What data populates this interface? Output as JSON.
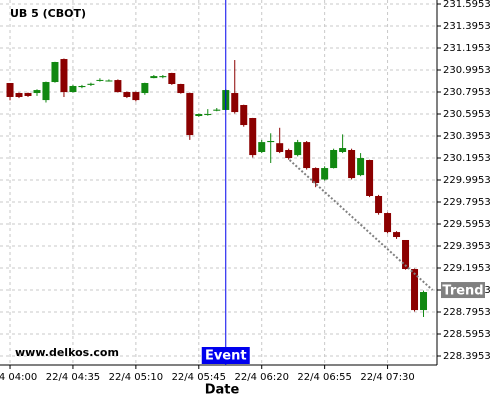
{
  "chart_data": {
    "type": "candlestick",
    "title": "UB 5 (CBOT)",
    "x_label": "Date",
    "watermark": "www.delkos.com",
    "categories": [
      "22/4 04:00",
      null,
      null,
      null,
      null,
      null,
      null,
      "22/4 04:35",
      null,
      null,
      null,
      null,
      null,
      null,
      "22/4 05:10",
      null,
      null,
      null,
      null,
      null,
      null,
      "22/4 05:45",
      null,
      null,
      null,
      null,
      null,
      null,
      "22/4 06:20",
      null,
      null,
      null,
      null,
      null,
      null,
      "22/4 06:55",
      null,
      null,
      null,
      null,
      null,
      null,
      "22/4 07:30",
      null,
      null,
      null,
      null
    ],
    "open": [
      230.877,
      230.786,
      230.786,
      230.786,
      230.722,
      230.886,
      231.095,
      230.795,
      230.84,
      230.86,
      230.9,
      230.895,
      230.904,
      230.795,
      230.795,
      230.786,
      230.922,
      230.93,
      230.968,
      230.868,
      230.786,
      230.577,
      230.59,
      230.625,
      230.632,
      230.786,
      230.677,
      230.559,
      230.25,
      230.34,
      230.33,
      230.268,
      230.222,
      230.34,
      230.104,
      230.0,
      230.104,
      230.25,
      230.268,
      230.04,
      230.177,
      229.85,
      229.695,
      229.522,
      229.45,
      229.186,
      228.813
    ],
    "high": [
      230.877,
      230.79,
      230.79,
      230.82,
      230.89,
      231.07,
      231.1,
      230.86,
      230.86,
      230.88,
      230.92,
      230.91,
      230.91,
      230.8,
      230.8,
      230.88,
      230.95,
      230.95,
      230.97,
      230.87,
      230.79,
      230.6,
      230.64,
      230.65,
      230.82,
      231.086,
      230.68,
      230.56,
      230.36,
      230.42,
      230.47,
      230.28,
      230.36,
      230.35,
      230.11,
      230.12,
      230.28,
      230.41,
      230.28,
      230.24,
      230.18,
      229.86,
      229.7,
      229.53,
      229.45,
      229.19,
      228.99
    ],
    "low": [
      230.72,
      230.74,
      230.75,
      230.76,
      230.7,
      230.88,
      230.75,
      230.79,
      230.83,
      230.85,
      230.89,
      230.89,
      230.79,
      230.74,
      230.71,
      230.77,
      230.92,
      230.92,
      230.86,
      230.78,
      230.36,
      230.57,
      230.58,
      230.62,
      230.63,
      230.6,
      230.48,
      230.2,
      230.24,
      230.15,
      230.24,
      230.18,
      230.21,
      230.09,
      229.93,
      229.99,
      230.1,
      230.24,
      230.0,
      230.03,
      229.84,
      229.68,
      229.51,
      229.46,
      229.18,
      228.8,
      228.75
    ],
    "close": [
      230.75,
      230.75,
      230.759,
      230.813,
      230.886,
      231.068,
      230.795,
      230.85,
      230.85,
      230.87,
      230.905,
      230.9,
      230.795,
      230.75,
      230.722,
      230.877,
      230.94,
      230.94,
      230.868,
      230.786,
      230.404,
      230.595,
      230.595,
      230.635,
      230.813,
      230.613,
      230.495,
      230.222,
      230.34,
      230.35,
      230.25,
      230.195,
      230.34,
      230.104,
      229.968,
      230.104,
      230.268,
      230.286,
      230.013,
      230.195,
      229.85,
      229.695,
      229.522,
      229.477,
      229.186,
      228.813,
      228.977
    ],
    "up_color": "#118811",
    "down_color": "#8b0000",
    "ylim": [
      228.3135,
      231.6317
    ],
    "yticks": [
      231.5953,
      231.3953,
      231.1953,
      230.9953,
      230.7953,
      230.5953,
      230.3953,
      230.1953,
      229.9953,
      229.7953,
      229.5953,
      229.3953,
      229.1953,
      228.9953,
      228.7953,
      228.5953,
      228.3953
    ],
    "grid": true,
    "event": {
      "label": "Event",
      "x": 24,
      "color": "#0000ee"
    },
    "trend": {
      "label": "Trend",
      "x": [
        31.1,
        47
      ],
      "y": [
        230.177,
        228.995
      ],
      "color": "#808080"
    }
  }
}
